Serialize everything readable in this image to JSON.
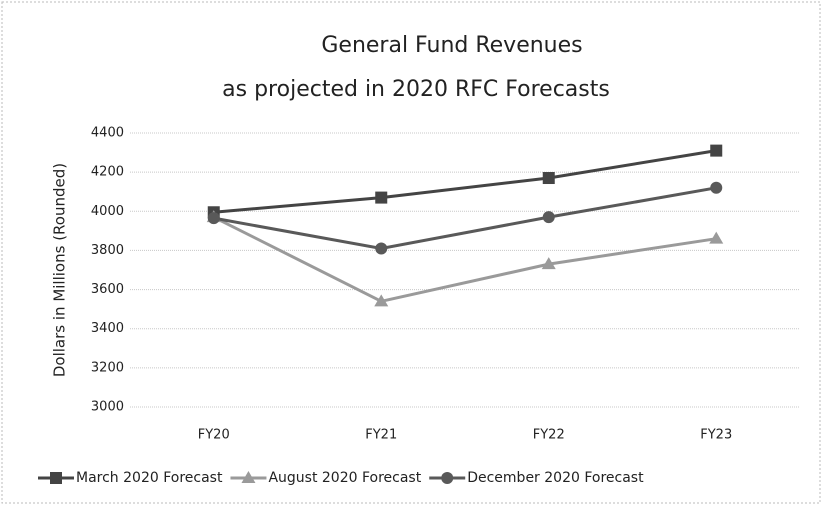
{
  "chart_data": {
    "type": "line",
    "title": "General Fund Revenues",
    "subtitle": "as projected in 2020 RFC Forecasts",
    "y_label": "Dollars in Millions (Rounded)",
    "categories": [
      "FY20",
      "FY21",
      "FY22",
      "FY23"
    ],
    "series": [
      {
        "name": "March 2020 Forecast",
        "color": "#444444",
        "marker": "square",
        "values": [
          3995,
          4070,
          4170,
          4310
        ]
      },
      {
        "name": "August 2020 Forecast",
        "color": "#9a9a9a",
        "marker": "triangle",
        "values": [
          3970,
          3540,
          3730,
          3860
        ]
      },
      {
        "name": "December 2020 Forecast",
        "color": "#595959",
        "marker": "circle",
        "values": [
          3965,
          3810,
          3970,
          4120
        ]
      }
    ],
    "ylim": [
      3000,
      4400
    ],
    "yticks": [
      3000,
      3200,
      3400,
      3600,
      3800,
      4000,
      4200,
      4400
    ],
    "grid": true,
    "legend": "bottom"
  }
}
